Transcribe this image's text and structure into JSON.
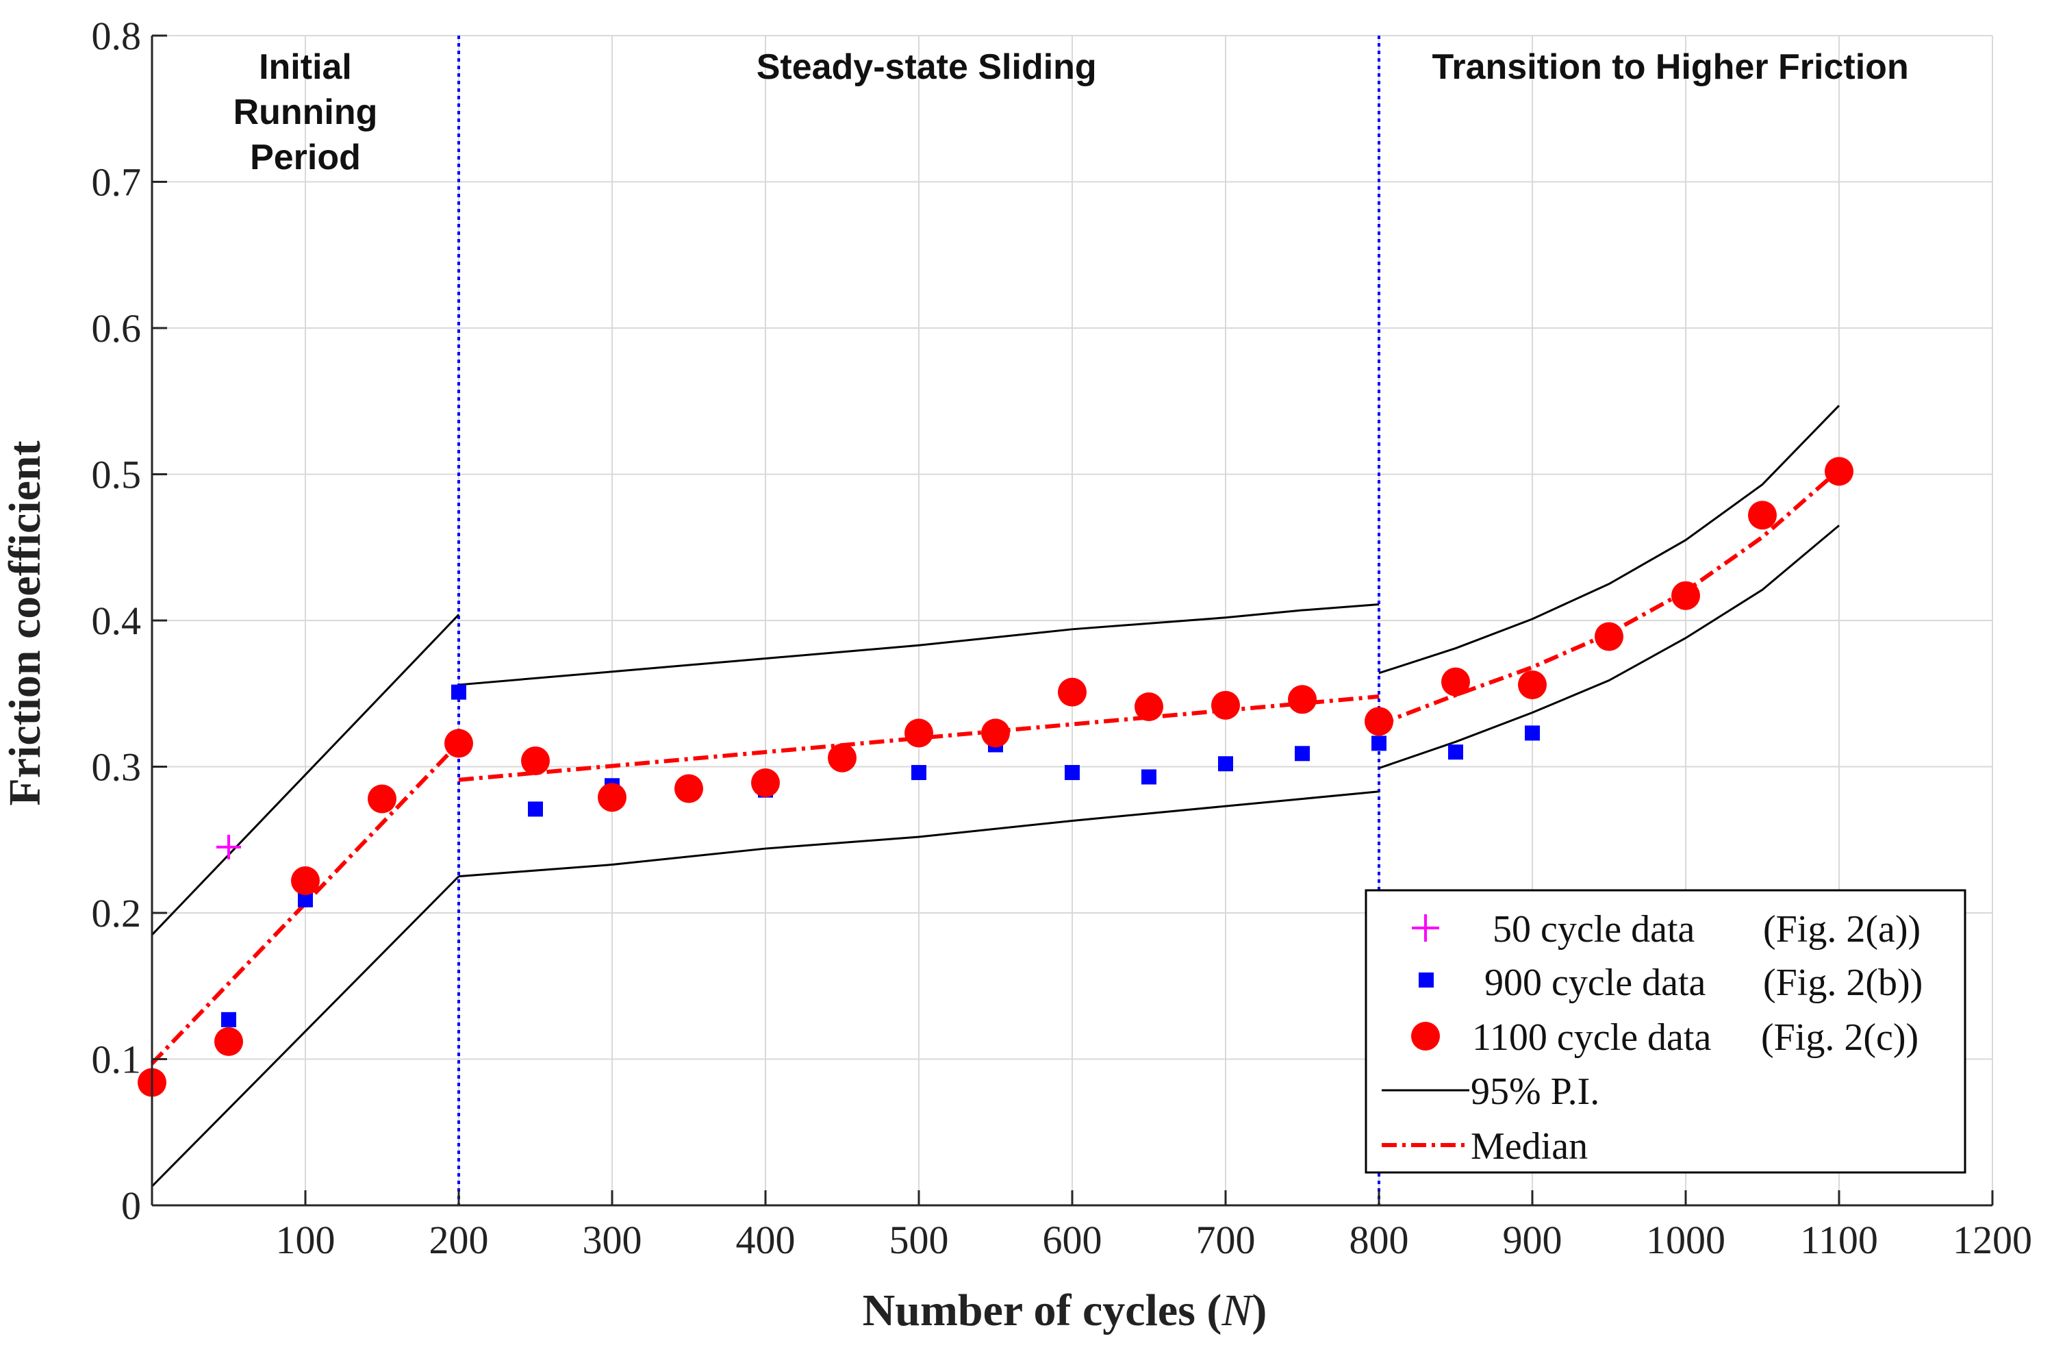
{
  "chart_data": {
    "type": "scatter",
    "xlabel": "Number of cycles (",
    "xlabel_italic": "N",
    "xlabel_suffix": ")",
    "ylabel": "Friction coefficient",
    "xlim": [
      0,
      1200
    ],
    "ylim": [
      0,
      0.8
    ],
    "xticks": [
      100,
      200,
      300,
      400,
      500,
      600,
      700,
      800,
      900,
      1000,
      1100,
      1200
    ],
    "yticks": [
      0,
      0.1,
      0.2,
      0.3,
      0.4,
      0.5,
      0.6,
      0.7,
      0.8
    ],
    "ytick_labels": [
      "0",
      "0.1",
      "0.2",
      "0.3",
      "0.4",
      "0.5",
      "0.6",
      "0.7",
      "0.8"
    ],
    "grid": true,
    "vlines": [
      200,
      800
    ],
    "regions": [
      {
        "lines": [
          "Initial",
          "Running",
          "Period"
        ],
        "x": 100
      },
      {
        "lines": [
          "Steady-state Sliding"
        ],
        "x": 505
      },
      {
        "lines": [
          "Transition to Higher Friction"
        ],
        "x": 990
      }
    ],
    "series": [
      {
        "name": "50 cycle data",
        "ref": "(Fig. 2(a))",
        "marker": "plus",
        "color": "#ff00ff",
        "x": [
          50
        ],
        "y": [
          0.245
        ]
      },
      {
        "name": "900 cycle data",
        "ref": "(Fig. 2(b))",
        "marker": "square",
        "color": "#0000ff",
        "x": [
          50,
          100,
          200,
          250,
          300,
          400,
          500,
          550,
          600,
          650,
          700,
          750,
          800,
          850,
          900
        ],
        "y": [
          0.127,
          0.209,
          0.351,
          0.271,
          0.287,
          0.284,
          0.296,
          0.315,
          0.296,
          0.293,
          0.302,
          0.309,
          0.316,
          0.31,
          0.323
        ]
      },
      {
        "name": "1100 cycle data",
        "ref": "(Fig. 2(c))",
        "marker": "circle",
        "color": "#ff0000",
        "x": [
          0,
          50,
          100,
          150,
          200,
          250,
          300,
          350,
          400,
          450,
          500,
          550,
          600,
          650,
          700,
          750,
          800,
          850,
          900,
          950,
          1000,
          1050,
          1100
        ],
        "y": [
          0.084,
          0.112,
          0.222,
          0.278,
          0.316,
          0.304,
          0.279,
          0.285,
          0.289,
          0.306,
          0.323,
          0.323,
          0.351,
          0.341,
          0.342,
          0.346,
          0.331,
          0.358,
          0.356,
          0.389,
          0.417,
          0.472,
          0.502
        ]
      }
    ],
    "bands": [
      {
        "name": "95% P.I.",
        "color": "#000000",
        "segments": [
          {
            "x": [
              0,
              200
            ],
            "upper": [
              0.185,
              0.404
            ],
            "lower": [
              0.013,
              0.225
            ]
          },
          {
            "x": [
              200,
              300,
              400,
              500,
              600,
              700,
              750,
              800
            ],
            "upper": [
              0.356,
              0.365,
              0.374,
              0.383,
              0.394,
              0.402,
              0.407,
              0.411
            ],
            "lower": [
              0.225,
              0.233,
              0.244,
              0.252,
              0.263,
              0.273,
              0.278,
              0.283
            ]
          },
          {
            "x": [
              800,
              850,
              900,
              950,
              1000,
              1050,
              1100
            ],
            "upper": [
              0.364,
              0.381,
              0.401,
              0.425,
              0.455,
              0.493,
              0.547
            ],
            "lower": [
              0.299,
              0.317,
              0.337,
              0.359,
              0.388,
              0.421,
              0.465
            ]
          }
        ]
      }
    ],
    "median": {
      "name": "Median",
      "color": "#ff0000",
      "segments": [
        {
          "x": [
            0,
            200
          ],
          "y": [
            0.097,
            0.316
          ]
        },
        {
          "x": [
            200,
            800
          ],
          "y": [
            0.291,
            0.348
          ]
        },
        {
          "x": [
            800,
            850,
            900,
            950,
            1000,
            1050,
            1100
          ],
          "y": [
            0.329,
            0.349,
            0.368,
            0.391,
            0.42,
            0.457,
            0.503
          ]
        }
      ]
    },
    "legend_position": "lower-right"
  }
}
